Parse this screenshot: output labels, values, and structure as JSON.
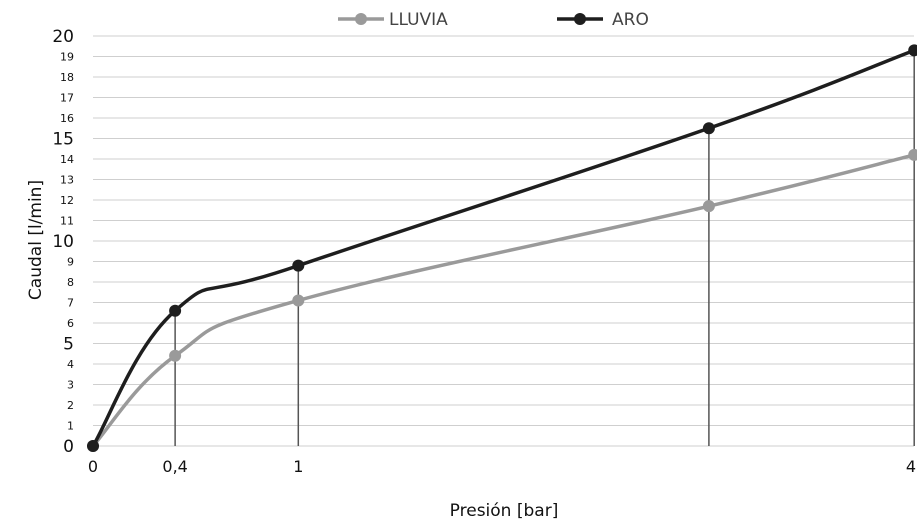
{
  "chart_data": {
    "type": "line",
    "xlabel": "Presión [bar]",
    "ylabel": "Caudal [l/min]",
    "ylim": [
      0,
      20
    ],
    "xlim": [
      0,
      4
    ],
    "x_tick_labels": [
      {
        "x": 0,
        "label": "0"
      },
      {
        "x": 0.4,
        "label": "0,4"
      },
      {
        "x": 1,
        "label": "1"
      },
      {
        "x": 4,
        "label": "4"
      }
    ],
    "y_ticks": [
      0,
      1,
      2,
      3,
      4,
      5,
      6,
      7,
      8,
      9,
      10,
      11,
      12,
      13,
      14,
      15,
      16,
      17,
      18,
      19,
      20
    ],
    "y_major_ticks": [
      0,
      5,
      10,
      15,
      20
    ],
    "grid": "horizontal",
    "legend_position": "top",
    "drop_lines_at_x": [
      0.4,
      1,
      3,
      4
    ],
    "series": [
      {
        "name": "LLUVIA",
        "color": "#9a9a9a",
        "points": [
          [
            0,
            0
          ],
          [
            0.4,
            4.4
          ],
          [
            1,
            7.1
          ],
          [
            3,
            11.7
          ],
          [
            4,
            14.2
          ]
        ]
      },
      {
        "name": "ARO",
        "color": "#1e1e1e",
        "points": [
          [
            0,
            0
          ],
          [
            0.4,
            6.6
          ],
          [
            1,
            8.8
          ],
          [
            3,
            15.5
          ],
          [
            4,
            19.3
          ]
        ]
      }
    ]
  }
}
